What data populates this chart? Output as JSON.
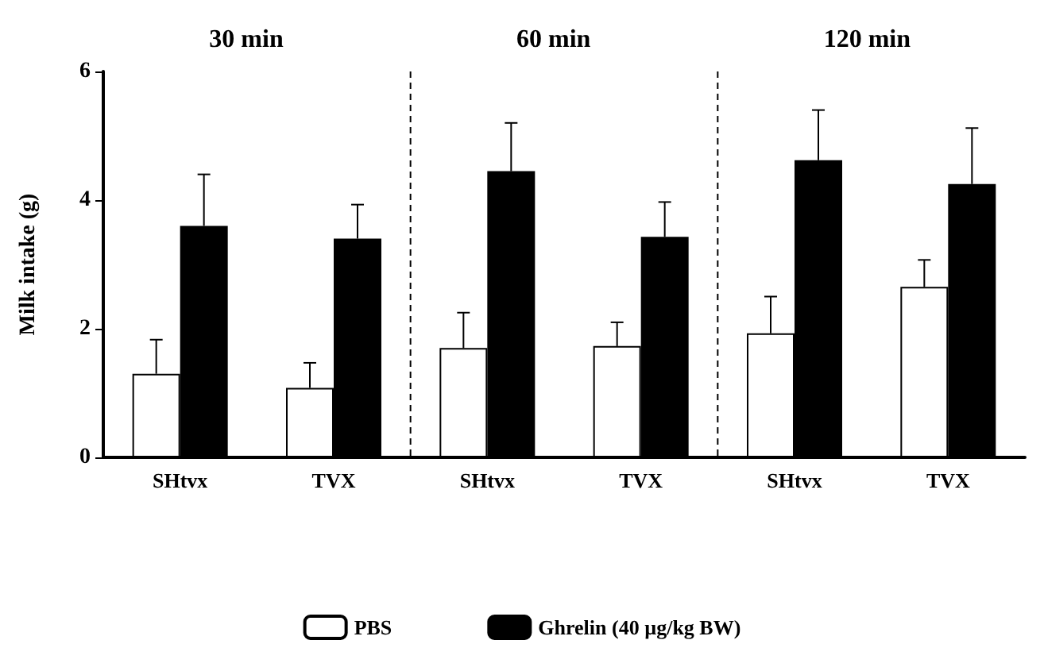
{
  "chart_data": {
    "type": "bar",
    "ylabel": "Milk intake (g)",
    "categories": [
      "SHtvx",
      "TVX",
      "SHtvx",
      "TVX",
      "SHtvx",
      "TVX"
    ],
    "series": [
      {
        "name": "PBS",
        "color": "#ffffff",
        "values": [
          1.3,
          1.08,
          1.7,
          1.73,
          1.93,
          2.65
        ],
        "errors": [
          [
            1.3,
            1.83
          ],
          [
            1.08,
            1.47
          ],
          [
            1.7,
            2.25
          ],
          [
            1.73,
            2.1
          ],
          [
            1.93,
            2.5
          ],
          [
            2.65,
            3.07
          ]
        ]
      },
      {
        "name": "Ghrelin (40 µg/kg BW)",
        "color": "#000000",
        "values": [
          3.6,
          3.4,
          4.45,
          3.43,
          4.62,
          4.25
        ],
        "errors": [
          [
            3.6,
            4.4
          ],
          [
            3.4,
            3.93
          ],
          [
            4.45,
            5.2
          ],
          [
            3.43,
            3.97
          ],
          [
            4.62,
            5.4
          ],
          [
            4.25,
            5.12
          ]
        ]
      }
    ],
    "annotations": [
      "30 min",
      "60 min",
      "120 min"
    ],
    "ylim": [
      0,
      6
    ],
    "yticks": [
      0,
      2,
      4,
      6
    ],
    "grid": false,
    "legend": "bottom"
  }
}
